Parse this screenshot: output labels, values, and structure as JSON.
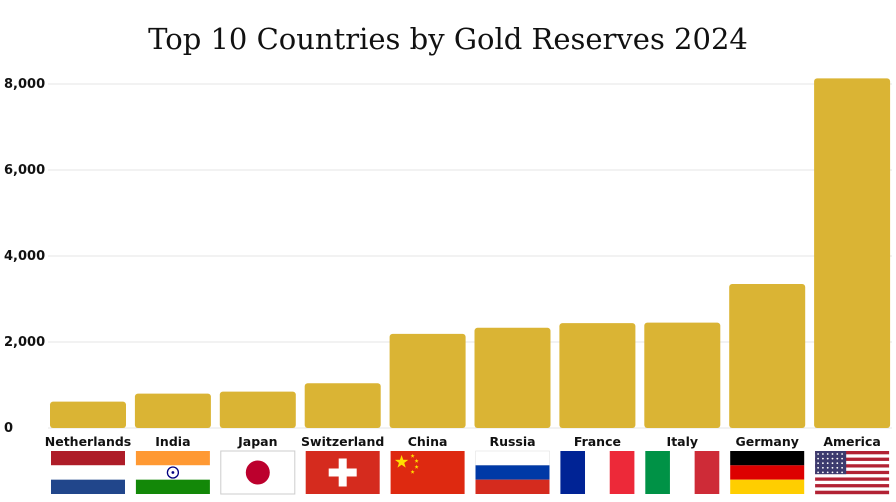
{
  "chart_data": {
    "type": "bar",
    "title": "Top 10 Countries by Gold Reserves 2024",
    "xlabel": "",
    "ylabel": "",
    "ylim": [
      0,
      8000
    ],
    "yticks": [
      "0",
      "2,000",
      "4,000",
      "6,000",
      "8,000"
    ],
    "categories": [
      "Netherlands",
      "India",
      "Japan",
      "Switzerland",
      "China",
      "Russia",
      "France",
      "Italy",
      "Germany",
      "America"
    ],
    "values": [
      612,
      800,
      846,
      1040,
      2190,
      2330,
      2440,
      2450,
      3350,
      8130
    ],
    "grid": true,
    "legend": "none",
    "bar_color": "#dab434",
    "flags": [
      "netherlands-flag",
      "india-flag",
      "japan-flag",
      "switzerland-flag",
      "china-flag",
      "russia-flag",
      "france-flag",
      "italy-flag",
      "germany-flag",
      "usa-flag"
    ]
  }
}
